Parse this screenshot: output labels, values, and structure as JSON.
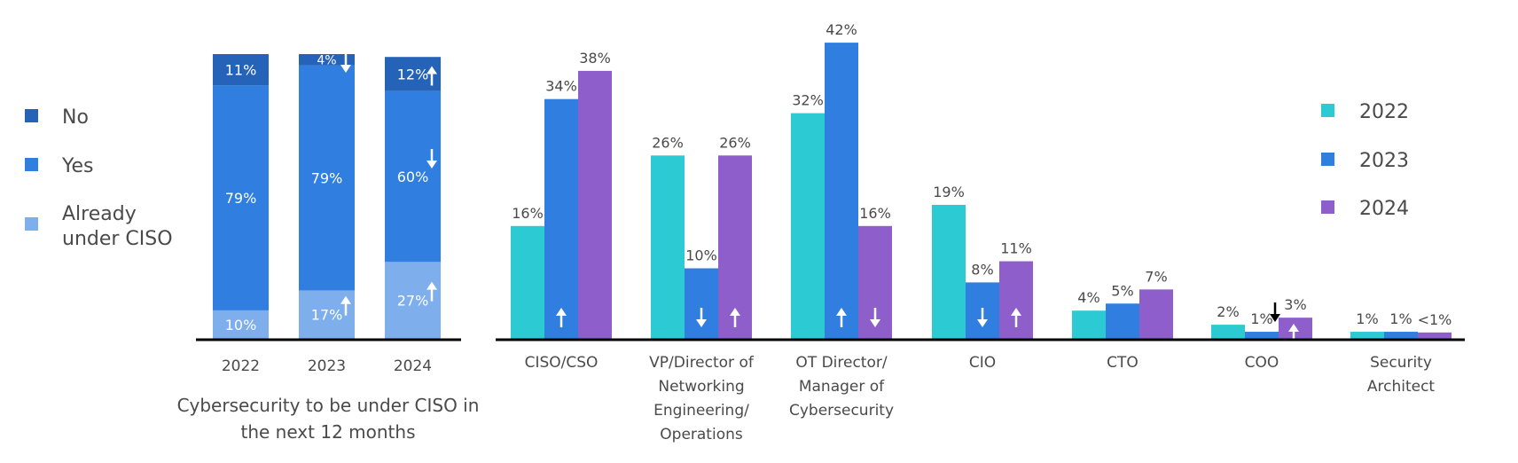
{
  "colors": {
    "no": "#2563b8",
    "yes": "#2f7ee0",
    "already": "#7eaeec",
    "y2022": "#2ccbd4",
    "y2023": "#2f7ee0",
    "y2024": "#8e5fcb",
    "text": "#4a4a4a",
    "axis": "#000000"
  },
  "chart_data": [
    {
      "type": "bar",
      "stacked": true,
      "title": "Cybersecurity to be under CISO in the next 12 months",
      "title_lines": [
        "Cybersecurity to be under CISO in",
        "the next 12 months"
      ],
      "categories": [
        "2022",
        "2023",
        "2024"
      ],
      "legend": [
        "No",
        "Yes",
        "Already under CISO"
      ],
      "legend_lines": [
        [
          "No"
        ],
        [
          "Yes"
        ],
        [
          "Already",
          "under CISO"
        ]
      ],
      "legend_position": "left",
      "series": [
        {
          "name": "Already under CISO",
          "values": [
            10,
            17,
            27
          ],
          "labels": [
            "10%",
            "17%",
            "27%"
          ],
          "trend": [
            null,
            "up",
            "up"
          ]
        },
        {
          "name": "Yes",
          "values": [
            79,
            79,
            60
          ],
          "labels": [
            "79%",
            "79%",
            "60%"
          ],
          "trend": [
            null,
            null,
            "down"
          ]
        },
        {
          "name": "No",
          "values": [
            11,
            4,
            12
          ],
          "labels": [
            "11%",
            "4%",
            "12%"
          ],
          "trend": [
            null,
            "down",
            "up"
          ]
        }
      ],
      "ylim": [
        0,
        100
      ],
      "grid": false
    },
    {
      "type": "bar",
      "stacked": false,
      "title": "",
      "categories": [
        "CISO/CSO",
        "VP/Director of Networking Engineering/ Operations",
        "OT Director/ Manager of Cybersecurity",
        "CIO",
        "CTO",
        "COO",
        "Security Architect"
      ],
      "category_lines": [
        [
          "CISO/CSO"
        ],
        [
          "VP/Director of",
          "Networking",
          "Engineering/",
          "Operations"
        ],
        [
          "OT Director/",
          "Manager of",
          "Cybersecurity"
        ],
        [
          "CIO"
        ],
        [
          "CTO"
        ],
        [
          "COO"
        ],
        [
          "Security",
          "Architect"
        ]
      ],
      "legend": [
        "2022",
        "2023",
        "2024"
      ],
      "legend_position": "top-right",
      "series": [
        {
          "name": "2022",
          "values": [
            16,
            26,
            32,
            19,
            4,
            2,
            1
          ],
          "labels": [
            "16%",
            "26%",
            "32%",
            "19%",
            "4%",
            "2%",
            "1%"
          ],
          "trend": [
            null,
            null,
            null,
            null,
            null,
            null,
            null
          ]
        },
        {
          "name": "2023",
          "values": [
            34,
            10,
            42,
            8,
            5,
            1,
            1
          ],
          "labels": [
            "34%",
            "10%",
            "42%",
            "8%",
            "5%",
            "1%",
            "1%"
          ],
          "trend": [
            "up",
            "down",
            "up",
            "down",
            null,
            "down",
            null
          ]
        },
        {
          "name": "2024",
          "values": [
            38,
            26,
            16,
            11,
            7,
            3,
            0.9
          ],
          "labels": [
            "38%",
            "26%",
            "16%",
            "11%",
            "7%",
            "3%",
            "<1%"
          ],
          "trend": [
            null,
            "up",
            "down",
            "up",
            null,
            "up",
            null
          ]
        }
      ],
      "ylim": [
        0,
        42
      ],
      "grid": false
    }
  ]
}
